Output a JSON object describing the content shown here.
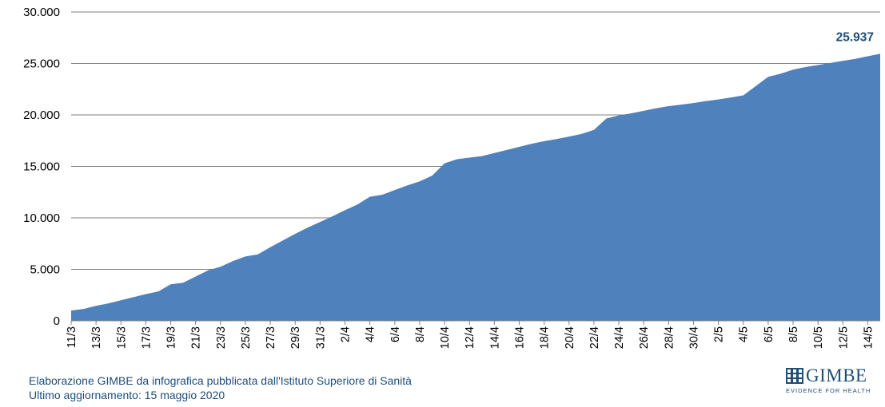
{
  "chart_data": {
    "type": "area",
    "x": [
      "11/3",
      "12/3",
      "13/3",
      "14/3",
      "15/3",
      "16/3",
      "17/3",
      "18/3",
      "19/3",
      "20/3",
      "21/3",
      "22/3",
      "23/3",
      "24/3",
      "25/3",
      "26/3",
      "27/3",
      "28/3",
      "29/3",
      "30/3",
      "31/3",
      "1/4",
      "2/4",
      "3/4",
      "4/4",
      "5/4",
      "6/4",
      "7/4",
      "8/4",
      "9/4",
      "10/4",
      "11/4",
      "12/4",
      "13/4",
      "14/4",
      "15/4",
      "16/4",
      "17/4",
      "18/4",
      "19/4",
      "20/4",
      "21/4",
      "22/4",
      "23/4",
      "24/4",
      "25/4",
      "26/4",
      "27/4",
      "28/4",
      "29/4",
      "30/4",
      "1/5",
      "2/5",
      "3/5",
      "4/5",
      "5/5",
      "6/5",
      "7/5",
      "8/5",
      "9/5",
      "10/5",
      "11/5",
      "12/5",
      "13/5",
      "14/5",
      "15/5"
    ],
    "xticks": [
      "11/3",
      "13/3",
      "15/3",
      "17/3",
      "19/3",
      "21/3",
      "23/3",
      "25/3",
      "27/3",
      "29/3",
      "31/3",
      "2/4",
      "4/4",
      "6/4",
      "8/4",
      "10/4",
      "12/4",
      "14/4",
      "16/4",
      "18/4",
      "20/4",
      "22/4",
      "24/4",
      "26/4",
      "28/4",
      "30/4",
      "2/5",
      "4/5",
      "6/5",
      "8/5",
      "10/5",
      "12/5",
      "14/5"
    ],
    "values": [
      1000,
      1150,
      1450,
      1700,
      2000,
      2300,
      2600,
      2850,
      3550,
      3700,
      4300,
      4900,
      5250,
      5800,
      6250,
      6450,
      7150,
      7800,
      8450,
      9050,
      9600,
      10150,
      10750,
      11300,
      12050,
      12250,
      12700,
      13150,
      13550,
      14100,
      15300,
      15700,
      15850,
      16000,
      16300,
      16600,
      16900,
      17200,
      17450,
      17650,
      17900,
      18150,
      18550,
      19650,
      19950,
      20150,
      20400,
      20650,
      20850,
      21000,
      21150,
      21350,
      21500,
      21700,
      21900,
      22800,
      23700,
      24000,
      24400,
      24650,
      24850,
      25050,
      25250,
      25450,
      25700,
      25937
    ],
    "yticks": [
      "0",
      "5.000",
      "10.000",
      "15.000",
      "20.000",
      "25.000",
      "30.000"
    ],
    "ylim": [
      0,
      30000
    ],
    "grid": true,
    "peak_label": "25.937",
    "title": "",
    "xlabel": "",
    "ylabel": ""
  },
  "colors": {
    "area": "#4f81bd",
    "text": "#1f4e79",
    "grid": "#808080"
  },
  "footer": {
    "line1": "Elaborazione GIMBE da infografica pubblicata dall'Istituto Superiore di Sanità",
    "line2": "Ultimo aggiornamento: 15 maggio 2020"
  },
  "logo": {
    "name": "GIMBE",
    "tagline": "EVIDENCE FOR HEALTH",
    "icon": "gimbe-grid-icon"
  }
}
